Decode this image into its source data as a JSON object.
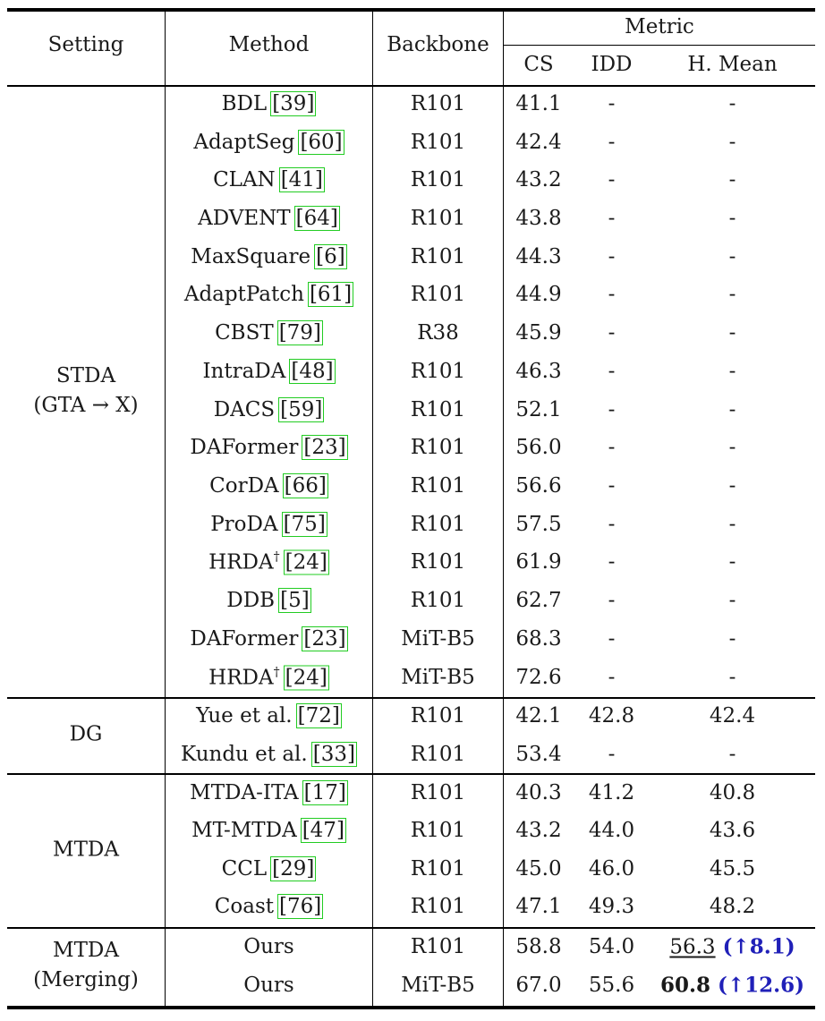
{
  "header": {
    "setting": "Setting",
    "method": "Method",
    "backbone": "Backbone",
    "metric": "Metric",
    "cs": "CS",
    "idd": "IDD",
    "hmean": "H. Mean"
  },
  "groups": [
    {
      "line1": "STDA",
      "line2": "(GTA → X)"
    },
    {
      "line1": "DG",
      "line2": ""
    },
    {
      "line1": "MTDA",
      "line2": ""
    },
    {
      "line1": "MTDA",
      "line2": "(Merging)"
    }
  ],
  "rows": [
    {
      "method": "BDL",
      "dagger": "",
      "ref": "[39]",
      "backbone": "R101",
      "cs": "41.1",
      "idd": "-",
      "hm": "-",
      "gain": ""
    },
    {
      "method": "AdaptSeg",
      "dagger": "",
      "ref": "[60]",
      "backbone": "R101",
      "cs": "42.4",
      "idd": "-",
      "hm": "-",
      "gain": ""
    },
    {
      "method": "CLAN",
      "dagger": "",
      "ref": "[41]",
      "backbone": "R101",
      "cs": "43.2",
      "idd": "-",
      "hm": "-",
      "gain": ""
    },
    {
      "method": "ADVENT",
      "dagger": "",
      "ref": "[64]",
      "backbone": "R101",
      "cs": "43.8",
      "idd": "-",
      "hm": "-",
      "gain": ""
    },
    {
      "method": "MaxSquare",
      "dagger": "",
      "ref": "[6]",
      "backbone": "R101",
      "cs": "44.3",
      "idd": "-",
      "hm": "-",
      "gain": ""
    },
    {
      "method": "AdaptPatch",
      "dagger": "",
      "ref": "[61]",
      "backbone": "R101",
      "cs": "44.9",
      "idd": "-",
      "hm": "-",
      "gain": ""
    },
    {
      "method": "CBST",
      "dagger": "",
      "ref": "[79]",
      "backbone": "R38",
      "cs": "45.9",
      "idd": "-",
      "hm": "-",
      "gain": ""
    },
    {
      "method": "IntraDA",
      "dagger": "",
      "ref": "[48]",
      "backbone": "R101",
      "cs": "46.3",
      "idd": "-",
      "hm": "-",
      "gain": ""
    },
    {
      "method": "DACS",
      "dagger": "",
      "ref": "[59]",
      "backbone": "R101",
      "cs": "52.1",
      "idd": "-",
      "hm": "-",
      "gain": ""
    },
    {
      "method": "DAFormer",
      "dagger": "",
      "ref": "[23]",
      "backbone": "R101",
      "cs": "56.0",
      "idd": "-",
      "hm": "-",
      "gain": ""
    },
    {
      "method": "CorDA",
      "dagger": "",
      "ref": "[66]",
      "backbone": "R101",
      "cs": "56.6",
      "idd": "-",
      "hm": "-",
      "gain": ""
    },
    {
      "method": "ProDA",
      "dagger": "",
      "ref": "[75]",
      "backbone": "R101",
      "cs": "57.5",
      "idd": "-",
      "hm": "-",
      "gain": ""
    },
    {
      "method": "HRDA",
      "dagger": "†",
      "ref": "[24]",
      "backbone": "R101",
      "cs": "61.9",
      "idd": "-",
      "hm": "-",
      "gain": ""
    },
    {
      "method": "DDB",
      "dagger": "",
      "ref": "[5]",
      "backbone": "R101",
      "cs": "62.7",
      "idd": "-",
      "hm": "-",
      "gain": ""
    },
    {
      "method": "DAFormer",
      "dagger": "",
      "ref": "[23]",
      "backbone": "MiT-B5",
      "cs": "68.3",
      "idd": "-",
      "hm": "-",
      "gain": ""
    },
    {
      "method": "HRDA",
      "dagger": "†",
      "ref": "[24]",
      "backbone": "MiT-B5",
      "cs": "72.6",
      "idd": "-",
      "hm": "-",
      "gain": ""
    },
    {
      "method": "Yue et al.",
      "dagger": "",
      "ref": "[72]",
      "backbone": "R101",
      "cs": "42.1",
      "idd": "42.8",
      "hm": "42.4",
      "gain": ""
    },
    {
      "method": "Kundu et al.",
      "dagger": "",
      "ref": "[33]",
      "backbone": "R101",
      "cs": "53.4",
      "idd": "-",
      "hm": "-",
      "gain": ""
    },
    {
      "method": "MTDA-ITA",
      "dagger": "",
      "ref": "[17]",
      "backbone": "R101",
      "cs": "40.3",
      "idd": "41.2",
      "hm": "40.8",
      "gain": ""
    },
    {
      "method": "MT-MTDA",
      "dagger": "",
      "ref": "[47]",
      "backbone": "R101",
      "cs": "43.2",
      "idd": "44.0",
      "hm": "43.6",
      "gain": ""
    },
    {
      "method": "CCL",
      "dagger": "",
      "ref": "[29]",
      "backbone": "R101",
      "cs": "45.0",
      "idd": "46.0",
      "hm": "45.5",
      "gain": ""
    },
    {
      "method": "Coast",
      "dagger": "",
      "ref": "[76]",
      "backbone": "R101",
      "cs": "47.1",
      "idd": "49.3",
      "hm": "48.2",
      "gain": ""
    },
    {
      "method": "Ours",
      "dagger": "",
      "ref": "",
      "backbone": "R101",
      "cs": "58.8",
      "idd": "54.0",
      "hm": "56.3",
      "gain": "(↑8.1)"
    },
    {
      "method": "Ours",
      "dagger": "",
      "ref": "",
      "backbone": "MiT-B5",
      "cs": "67.0",
      "idd": "55.6",
      "hm": "60.8",
      "gain": "(↑12.6)"
    }
  ],
  "colors": {
    "citation_box": "#22cc22",
    "gain_text": "#2020b8"
  }
}
